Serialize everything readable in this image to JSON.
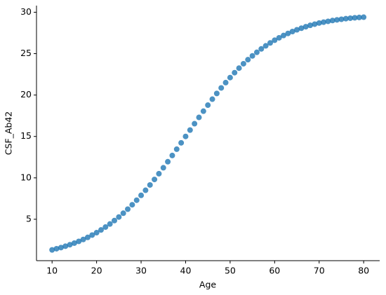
{
  "chart_data": {
    "type": "scatter",
    "x_label": "Age",
    "y_label": "CSF_Ab42",
    "color": "#1f77b4",
    "x": [
      10,
      11,
      12,
      13,
      14,
      15,
      16,
      17,
      18,
      19,
      20,
      21,
      22,
      23,
      24,
      25,
      26,
      27,
      28,
      29,
      30,
      31,
      32,
      33,
      34,
      35,
      36,
      37,
      38,
      39,
      40,
      41,
      42,
      43,
      44,
      45,
      46,
      47,
      48,
      49,
      50,
      51,
      52,
      53,
      54,
      55,
      56,
      57,
      58,
      59,
      60,
      61,
      62,
      63,
      64,
      65,
      66,
      67,
      68,
      69,
      70,
      71,
      72,
      73,
      74,
      75,
      76,
      77,
      78,
      79,
      80
    ],
    "values": [
      1.3,
      1.44,
      1.58,
      1.75,
      1.93,
      2.12,
      2.33,
      2.56,
      2.81,
      3.09,
      3.38,
      3.71,
      4.06,
      4.43,
      4.84,
      5.27,
      5.73,
      6.22,
      6.75,
      7.3,
      7.89,
      8.5,
      9.14,
      9.81,
      10.5,
      11.22,
      11.95,
      12.7,
      13.46,
      14.23,
      15,
      15.77,
      16.54,
      17.3,
      18.05,
      18.78,
      19.5,
      20.19,
      20.86,
      21.5,
      22.11,
      22.7,
      23.25,
      23.78,
      24.27,
      24.73,
      25.16,
      25.57,
      25.94,
      26.29,
      26.62,
      26.91,
      27.19,
      27.44,
      27.67,
      27.88,
      28.07,
      28.25,
      28.42,
      28.56,
      28.7,
      28.8,
      28.9,
      29.0,
      29.08,
      29.15,
      29.22,
      29.28,
      29.33,
      29.37,
      29.4
    ],
    "xlim": [
      6.5,
      83.6
    ],
    "ylim": [
      0,
      30.8
    ],
    "xticks": [
      10,
      20,
      30,
      40,
      50,
      60,
      70,
      80
    ],
    "yticks": [
      5,
      10,
      15,
      20,
      25,
      30
    ]
  }
}
